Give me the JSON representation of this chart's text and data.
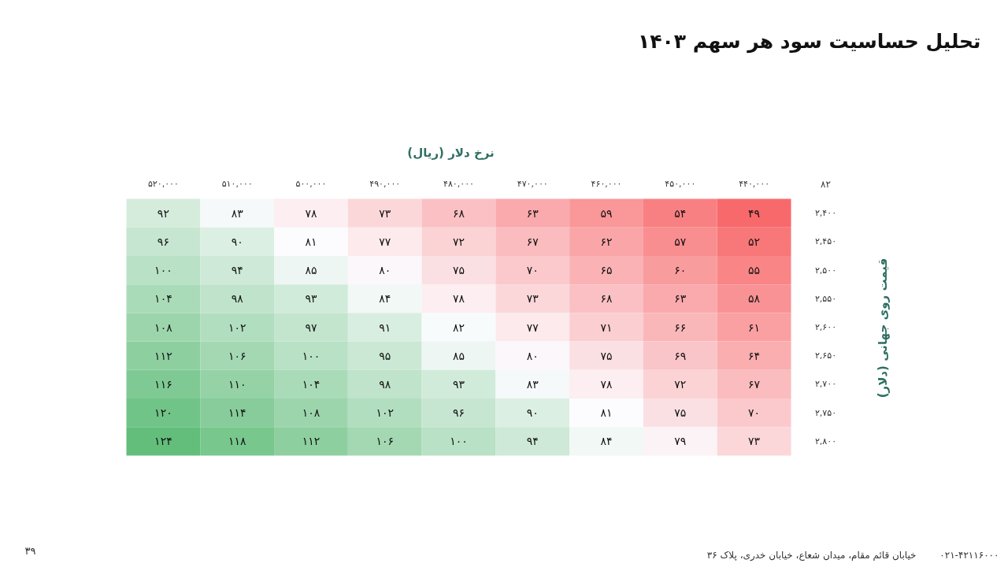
{
  "chart_data": {
    "type": "heatmap",
    "title": "تحلیل حساسیت سود هر سهم ۱۴۰۳",
    "xlabel": "نرخ دلار (ریال)",
    "ylabel": "قیمت روی جهانی (دلار)",
    "categories": [
      "۵۲۰,۰۰۰",
      "۵۱۰,۰۰۰",
      "۵۰۰,۰۰۰",
      "۴۹۰,۰۰۰",
      "۴۸۰,۰۰۰",
      "۴۷۰,۰۰۰",
      "۴۶۰,۰۰۰",
      "۴۵۰,۰۰۰",
      "۴۴۰,۰۰۰"
    ],
    "y_categories": [
      "۲,۴۰۰",
      "۲,۴۵۰",
      "۲,۵۰۰",
      "۲,۵۵۰",
      "۲,۶۰۰",
      "۲,۶۵۰",
      "۲,۷۰۰",
      "۲,۷۵۰",
      "۲,۸۰۰"
    ],
    "cells": [
      [
        92,
        83,
        78,
        73,
        68,
        63,
        59,
        54,
        49
      ],
      [
        96,
        90,
        81,
        77,
        72,
        67,
        62,
        57,
        52
      ],
      [
        100,
        94,
        85,
        80,
        75,
        70,
        65,
        60,
        55
      ],
      [
        104,
        98,
        93,
        84,
        78,
        73,
        68,
        63,
        58
      ],
      [
        108,
        102,
        97,
        91,
        82,
        77,
        71,
        66,
        61
      ],
      [
        112,
        106,
        100,
        95,
        85,
        80,
        75,
        69,
        64
      ],
      [
        116,
        110,
        104,
        98,
        93,
        83,
        78,
        72,
        67
      ],
      [
        120,
        114,
        108,
        102,
        96,
        90,
        81,
        75,
        70
      ],
      [
        124,
        118,
        112,
        106,
        100,
        94,
        84,
        79,
        73
      ]
    ],
    "cell_labels": [
      [
        "۹۲",
        "۸۳",
        "۷۸",
        "۷۳",
        "۶۸",
        "۶۳",
        "۵۹",
        "۵۴",
        "۴۹"
      ],
      [
        "۹۶",
        "۹۰",
        "۸۱",
        "۷۷",
        "۷۲",
        "۶۷",
        "۶۲",
        "۵۷",
        "۵۲"
      ],
      [
        "۱۰۰",
        "۹۴",
        "۸۵",
        "۸۰",
        "۷۵",
        "۷۰",
        "۶۵",
        "۶۰",
        "۵۵"
      ],
      [
        "۱۰۴",
        "۹۸",
        "۹۳",
        "۸۴",
        "۷۸",
        "۷۳",
        "۶۸",
        "۶۳",
        "۵۸"
      ],
      [
        "۱۰۸",
        "۱۰۲",
        "۹۷",
        "۹۱",
        "۸۲",
        "۷۷",
        "۷۱",
        "۶۶",
        "۶۱"
      ],
      [
        "۱۱۲",
        "۱۰۶",
        "۱۰۰",
        "۹۵",
        "۸۵",
        "۸۰",
        "۷۵",
        "۶۹",
        "۶۴"
      ],
      [
        "۱۱۶",
        "۱۱۰",
        "۱۰۴",
        "۹۸",
        "۹۳",
        "۸۳",
        "۷۸",
        "۷۲",
        "۶۷"
      ],
      [
        "۱۲۰",
        "۱۱۴",
        "۱۰۸",
        "۱۰۲",
        "۹۶",
        "۹۰",
        "۸۱",
        "۷۵",
        "۷۰"
      ],
      [
        "۱۲۴",
        "۱۱۸",
        "۱۱۲",
        "۱۰۶",
        "۱۰۰",
        "۹۴",
        "۸۴",
        "۷۹",
        "۷۳"
      ]
    ],
    "colors": [
      "#f8696b",
      "#fcfcff",
      "#63be7b"
    ],
    "annotations": [
      "۸۲",
      "۰۲۱-۴۲۱۱۶۰۰۰",
      "خیابان قائم مقام، میدان شعاع، خیابان خدری، پلاک ۳۶",
      "۳۹"
    ]
  }
}
